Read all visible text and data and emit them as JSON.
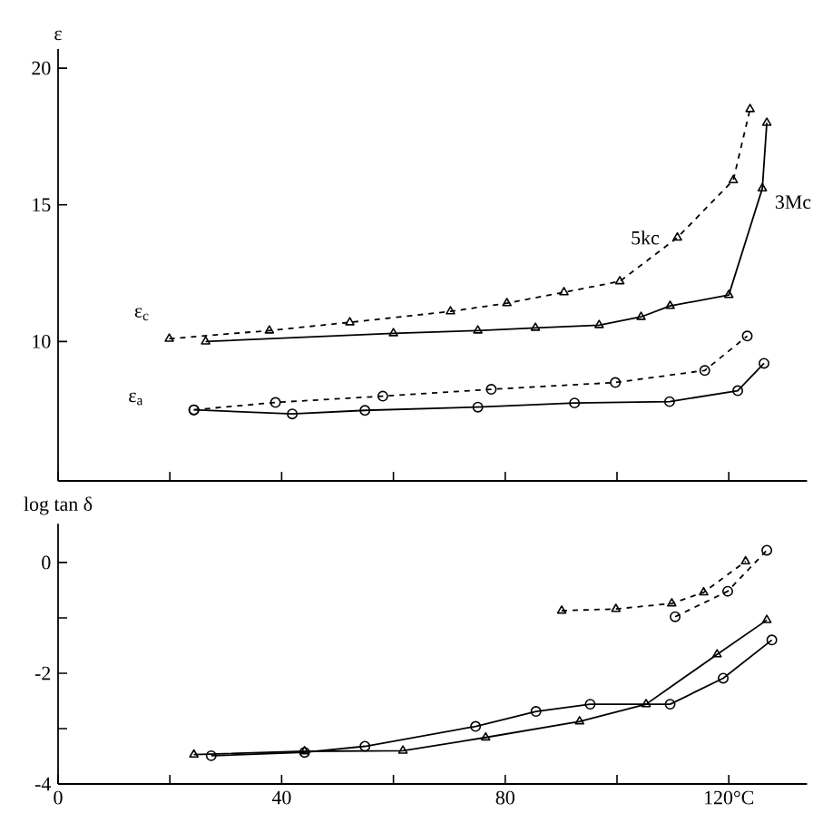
{
  "chart_data": [
    {
      "type": "line",
      "ylabel": "ε",
      "xlim": [
        0,
        134
      ],
      "ylim": [
        4.9,
        20.7
      ],
      "xticks": [
        {
          "value": 0,
          "label": null
        },
        {
          "value": 20,
          "label": null
        },
        {
          "value": 40,
          "label": null
        },
        {
          "value": 60,
          "label": null
        },
        {
          "value": 80,
          "label": null
        },
        {
          "value": 100,
          "label": null
        },
        {
          "value": 120,
          "label": null
        }
      ],
      "yticks": [
        10,
        15,
        20
      ],
      "tick_labels": "y",
      "series": [
        {
          "name": "5kc",
          "color": "#000000",
          "marker": "triangle",
          "line_style": "dashed",
          "x": [
            19.9,
            37.8,
            52.2,
            70.2,
            80.3,
            90.5,
            100.5,
            110.8,
            120.8,
            123.8
          ],
          "values": [
            10.1,
            10.4,
            10.7,
            11.1,
            11.4,
            11.8,
            12.2,
            13.8,
            15.9,
            18.5
          ]
        },
        {
          "name": "3Mc",
          "color": "#000000",
          "marker": "triangle",
          "line_style": "solid",
          "x": [
            26.4,
            60.0,
            75.1,
            85.4,
            96.8,
            104.3,
            109.5,
            120.0,
            126.0,
            126.8
          ],
          "values": [
            10.0,
            10.3,
            10.4,
            10.5,
            10.6,
            10.9,
            11.3,
            11.7,
            15.6,
            18.0
          ]
        },
        {
          "color": "#000000",
          "marker": "circle",
          "line_style": "dashed",
          "x": [
            24.3,
            38.9,
            58.1,
            77.5,
            99.7,
            115.7,
            123.3
          ],
          "values": [
            7.5,
            7.77,
            8.0,
            8.25,
            8.5,
            8.94,
            10.2
          ]
        },
        {
          "color": "#000000",
          "marker": "circle",
          "line_style": "solid",
          "x": [
            24.3,
            41.9,
            54.9,
            75.1,
            92.4,
            109.4,
            121.6,
            126.3
          ],
          "values": [
            7.5,
            7.35,
            7.48,
            7.6,
            7.75,
            7.8,
            8.2,
            9.2
          ]
        }
      ],
      "annotations": [
        "ε$_{c}$",
        "ε$_{a}$"
      ]
    },
    {
      "type": "line",
      "ylabel": "log tan δ",
      "xlim": [
        0,
        134
      ],
      "ylim": [
        -4,
        0.7
      ],
      "xticks": [
        0,
        {
          "value": 20,
          "label": null
        },
        40,
        {
          "value": 60,
          "label": null
        },
        80,
        {
          "value": 100,
          "label": null
        },
        {
          "value": 120,
          "label": "120°C"
        }
      ],
      "yticks": [
        0,
        {
          "value": -1,
          "label": null
        },
        -2,
        {
          "value": -3,
          "label": null
        },
        -4
      ],
      "series": [
        {
          "color": "#000000",
          "marker": "triangle",
          "line_style": "dashed",
          "x": [
            90.1,
            99.8,
            109.8,
            115.5,
            123.0
          ],
          "values": [
            -0.87,
            -0.84,
            -0.74,
            -0.54,
            0.02
          ]
        },
        {
          "color": "#000000",
          "marker": "circle",
          "line_style": "dashed",
          "x": [
            110.4,
            119.8,
            126.8
          ],
          "values": [
            -0.98,
            -0.52,
            0.22
          ]
        },
        {
          "color": "#000000",
          "marker": "triangle",
          "line_style": "solid",
          "x": [
            24.3,
            44.1,
            61.7,
            76.5,
            93.3,
            105.2,
            117.9,
            126.8
          ],
          "values": [
            -3.47,
            -3.41,
            -3.4,
            -3.16,
            -2.87,
            -2.56,
            -1.66,
            -1.04
          ]
        },
        {
          "color": "#000000",
          "marker": "circle",
          "line_style": "solid",
          "x": [
            27.4,
            44.1,
            54.9,
            74.7,
            85.5,
            95.2,
            109.5,
            119.0,
            127.7
          ],
          "values": [
            -3.49,
            -3.43,
            -3.32,
            -2.96,
            -2.69,
            -2.56,
            -2.56,
            -2.09,
            -1.4
          ]
        }
      ]
    }
  ]
}
